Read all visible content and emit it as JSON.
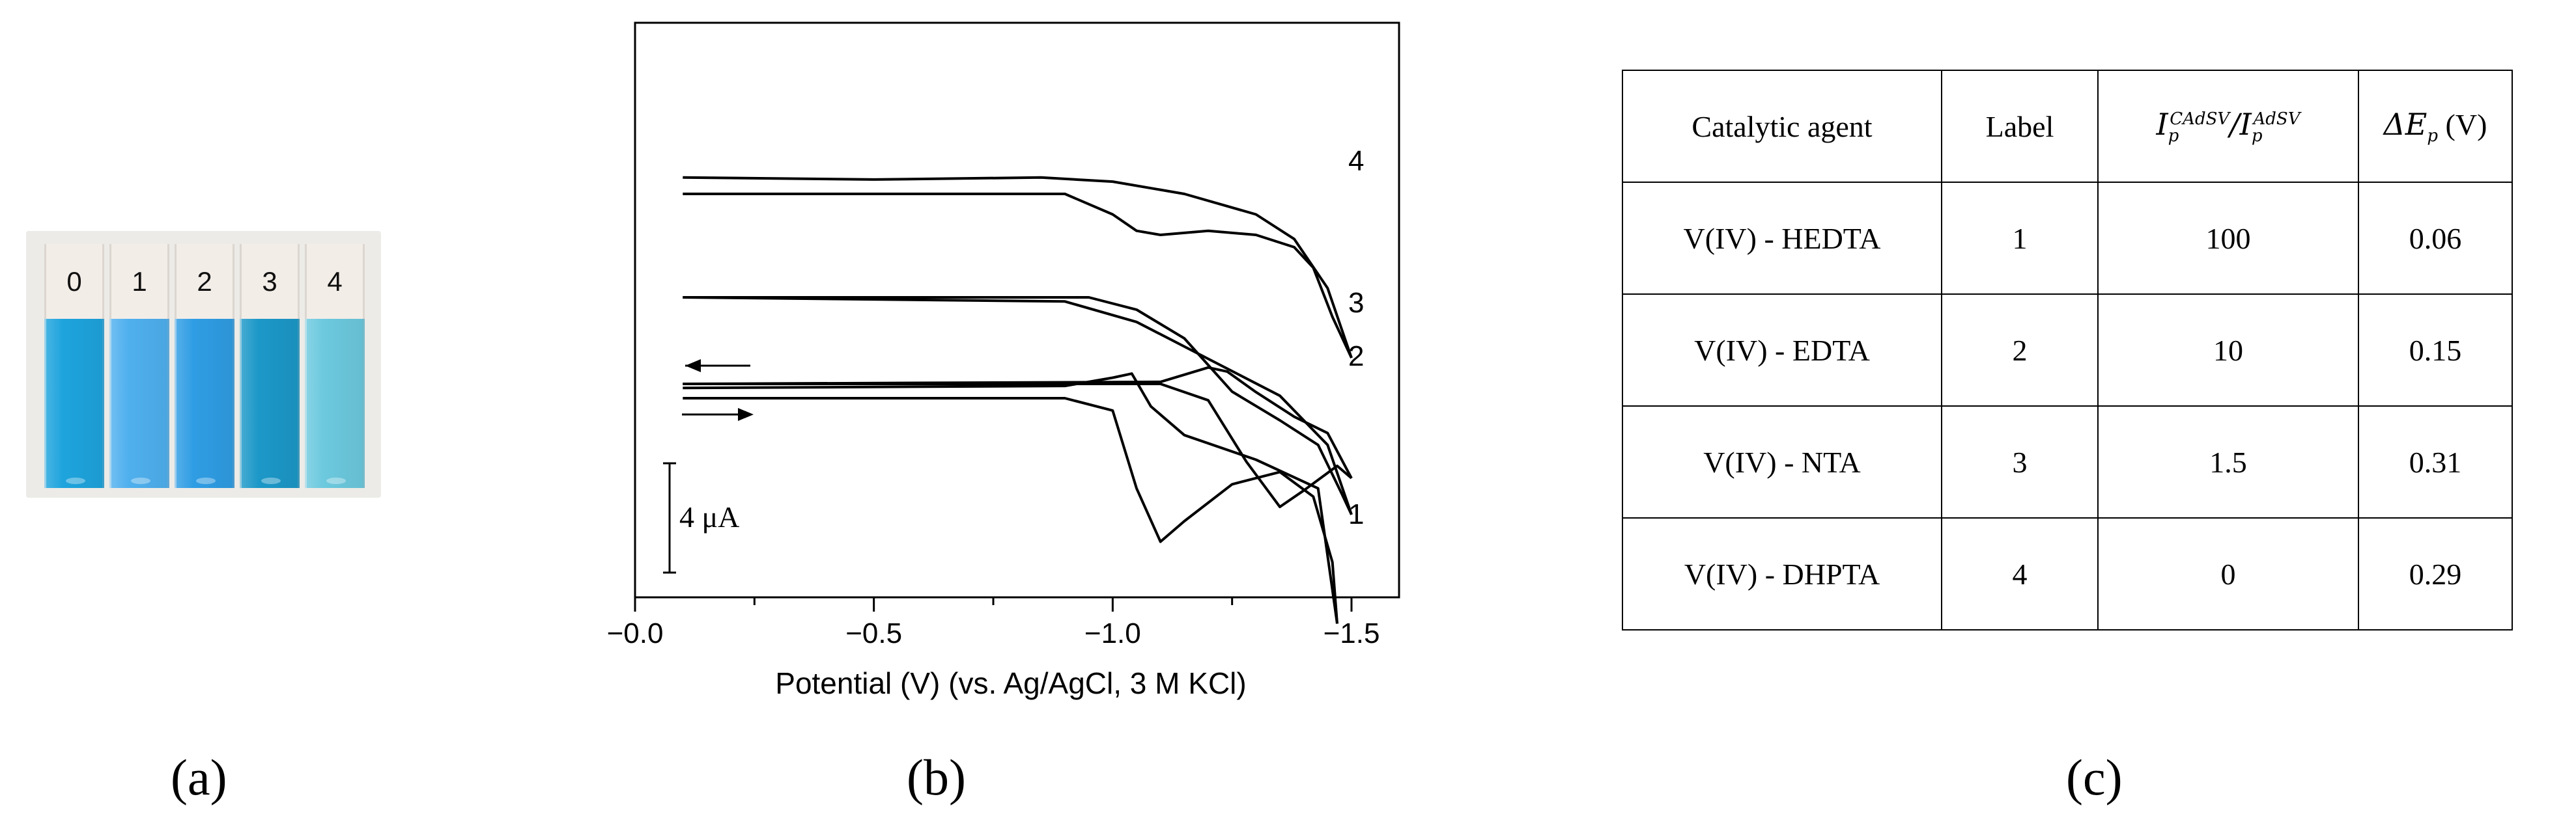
{
  "panels": {
    "a": "(a)",
    "b": "(b)",
    "c": "(c)"
  },
  "photo": {
    "cuvettes": [
      {
        "label": "0",
        "color": "#1ea4dd"
      },
      {
        "label": "1",
        "color": "#4fb0ee"
      },
      {
        "label": "2",
        "color": "#2f9de4"
      },
      {
        "label": "3",
        "color": "#1c98c8"
      },
      {
        "label": "4",
        "color": "#6cc9de"
      }
    ]
  },
  "chart_data": {
    "type": "line",
    "title": "",
    "xlabel": "Potential (V) (vs. Ag/AgCl, 3 M KCl)",
    "ylabel": "",
    "xlim": [
      0.0,
      -1.6
    ],
    "x_ticks": [
      0.0,
      -0.5,
      -1.0,
      -1.5
    ],
    "x_tick_labels": [
      "−0.0",
      "−0.5",
      "−1.0",
      "−1.5"
    ],
    "scale_bar": "4 μA",
    "y_units": "μA (curves vertically offset)",
    "series": [
      {
        "name": "1",
        "forward": [
          [
            -0.1,
            0.0
          ],
          [
            -0.9,
            0.0
          ],
          [
            -1.0,
            -0.3
          ],
          [
            -1.05,
            -2.2
          ],
          [
            -1.1,
            -3.5
          ],
          [
            -1.15,
            -3.0
          ],
          [
            -1.25,
            -2.1
          ],
          [
            -1.35,
            -1.8
          ],
          [
            -1.42,
            -2.4
          ],
          [
            -1.46,
            -4.0
          ],
          [
            -1.47,
            -5.5
          ]
        ],
        "reverse": [
          [
            -1.47,
            -5.5
          ],
          [
            -1.43,
            -2.2
          ],
          [
            -1.3,
            -1.5
          ],
          [
            -1.15,
            -0.9
          ],
          [
            -1.08,
            -0.2
          ],
          [
            -1.04,
            0.6
          ],
          [
            -1.0,
            0.5
          ],
          [
            -0.9,
            0.3
          ],
          [
            -0.1,
            0.25
          ]
        ]
      },
      {
        "name": "2",
        "forward": [
          [
            -0.1,
            0.0
          ],
          [
            -1.1,
            0.0
          ],
          [
            -1.2,
            -0.4
          ],
          [
            -1.28,
            -1.9
          ],
          [
            -1.35,
            -3.0
          ],
          [
            -1.4,
            -2.6
          ],
          [
            -1.47,
            -2.0
          ],
          [
            -1.5,
            -2.3
          ]
        ],
        "reverse": [
          [
            -1.5,
            -2.3
          ],
          [
            -1.45,
            -1.2
          ],
          [
            -1.38,
            -0.8
          ],
          [
            -1.3,
            -0.2
          ],
          [
            -1.24,
            0.3
          ],
          [
            -1.2,
            0.4
          ],
          [
            -1.1,
            0.05
          ],
          [
            -0.1,
            0.0
          ]
        ]
      },
      {
        "name": "3",
        "forward": [
          [
            -0.1,
            0.0
          ],
          [
            -0.95,
            0.0
          ],
          [
            -1.05,
            -0.3
          ],
          [
            -1.15,
            -1.0
          ],
          [
            -1.25,
            -2.3
          ],
          [
            -1.35,
            -3.0
          ],
          [
            -1.43,
            -3.6
          ],
          [
            -1.48,
            -4.8
          ],
          [
            -1.5,
            -5.3
          ]
        ],
        "reverse": [
          [
            -1.5,
            -5.3
          ],
          [
            -1.45,
            -3.6
          ],
          [
            -1.35,
            -2.4
          ],
          [
            -1.2,
            -1.5
          ],
          [
            -1.05,
            -0.6
          ],
          [
            -0.9,
            -0.1
          ],
          [
            -0.1,
            0.0
          ]
        ]
      },
      {
        "name": "4",
        "forward": [
          [
            -0.1,
            0.0
          ],
          [
            -0.9,
            0.0
          ],
          [
            -1.0,
            -0.5
          ],
          [
            -1.05,
            -0.9
          ],
          [
            -1.1,
            -1.0
          ],
          [
            -1.2,
            -0.9
          ],
          [
            -1.3,
            -1.0
          ],
          [
            -1.38,
            -1.3
          ],
          [
            -1.42,
            -1.8
          ],
          [
            -1.46,
            -3.0
          ],
          [
            -1.5,
            -4.0
          ]
        ],
        "reverse": [
          [
            -1.5,
            -4.0
          ],
          [
            -1.45,
            -2.3
          ],
          [
            -1.38,
            -1.1
          ],
          [
            -1.3,
            -0.5
          ],
          [
            -1.15,
            0.0
          ],
          [
            -1.0,
            0.3
          ],
          [
            -0.85,
            0.4
          ],
          [
            -0.5,
            0.35
          ],
          [
            -0.1,
            0.4
          ]
        ]
      }
    ]
  },
  "table": {
    "headers": {
      "agent": "Catalytic agent",
      "label": "Label",
      "ratio_main": "I",
      "ratio_sup1": "CAdSV",
      "ratio_sub": "p",
      "ratio_slash": "/I",
      "ratio_sup2": "AdSV",
      "delta": "ΔE",
      "delta_sub": "p",
      "delta_unit": "(V)"
    },
    "rows": [
      {
        "agent": "V(IV) - HEDTA",
        "label": "1",
        "ratio": "100",
        "delta": "0.06"
      },
      {
        "agent": "V(IV) - EDTA",
        "label": "2",
        "ratio": "10",
        "delta": "0.15"
      },
      {
        "agent": "V(IV) - NTA",
        "label": "3",
        "ratio": "1.5",
        "delta": "0.31"
      },
      {
        "agent": "V(IV) - DHPTA",
        "label": "4",
        "ratio": "0",
        "delta": "0.29"
      }
    ]
  }
}
